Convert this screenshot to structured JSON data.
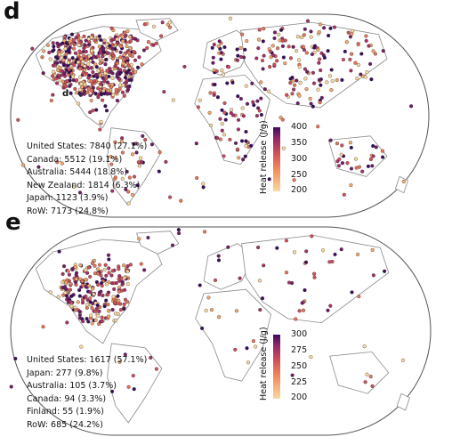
{
  "panels": [
    {
      "letter": "d",
      "inner_label": "d",
      "stats": [
        "United States: 7840 (27.1%)",
        "Canada: 5512 (19.1%)",
        "Australia: 5444 (18.8%)",
        "New Zealand: 1814 (6.3%)",
        "Japan: 1123 (3.9%)",
        "RoW: 7173 (24.8%)"
      ],
      "colorbar": {
        "title": "Heat release (J/g)",
        "min": 200,
        "max": 400,
        "ticks": [
          "400",
          "350",
          "300",
          "250",
          "200"
        ],
        "tick_values": [
          400,
          350,
          300,
          250,
          200
        ]
      },
      "point_count": 900,
      "seed": 11
    },
    {
      "letter": "e",
      "stats": [
        "United States: 1617 (57.1%)",
        "Japan: 277 (9.8%)",
        "Australia: 105 (3.7%)",
        "Canada: 94 (3.3%)",
        "Finland: 55 (1.9%)",
        "RoW: 685 (24.2%)"
      ],
      "colorbar": {
        "title": "Heat release (J/g)",
        "min": 200,
        "max": 300,
        "ticks": [
          "300",
          "275",
          "250",
          "225",
          "200"
        ],
        "tick_values": [
          300,
          275,
          250,
          225,
          200
        ]
      },
      "point_count": 330,
      "seed": 29
    }
  ],
  "colors": {
    "cmap_low": "#fcd9a0",
    "cmap_mid": "#d24f5a",
    "cmap_high": "#3a0b5e",
    "land_stroke": "#8a8a8a",
    "outline_stroke": "#555555"
  }
}
